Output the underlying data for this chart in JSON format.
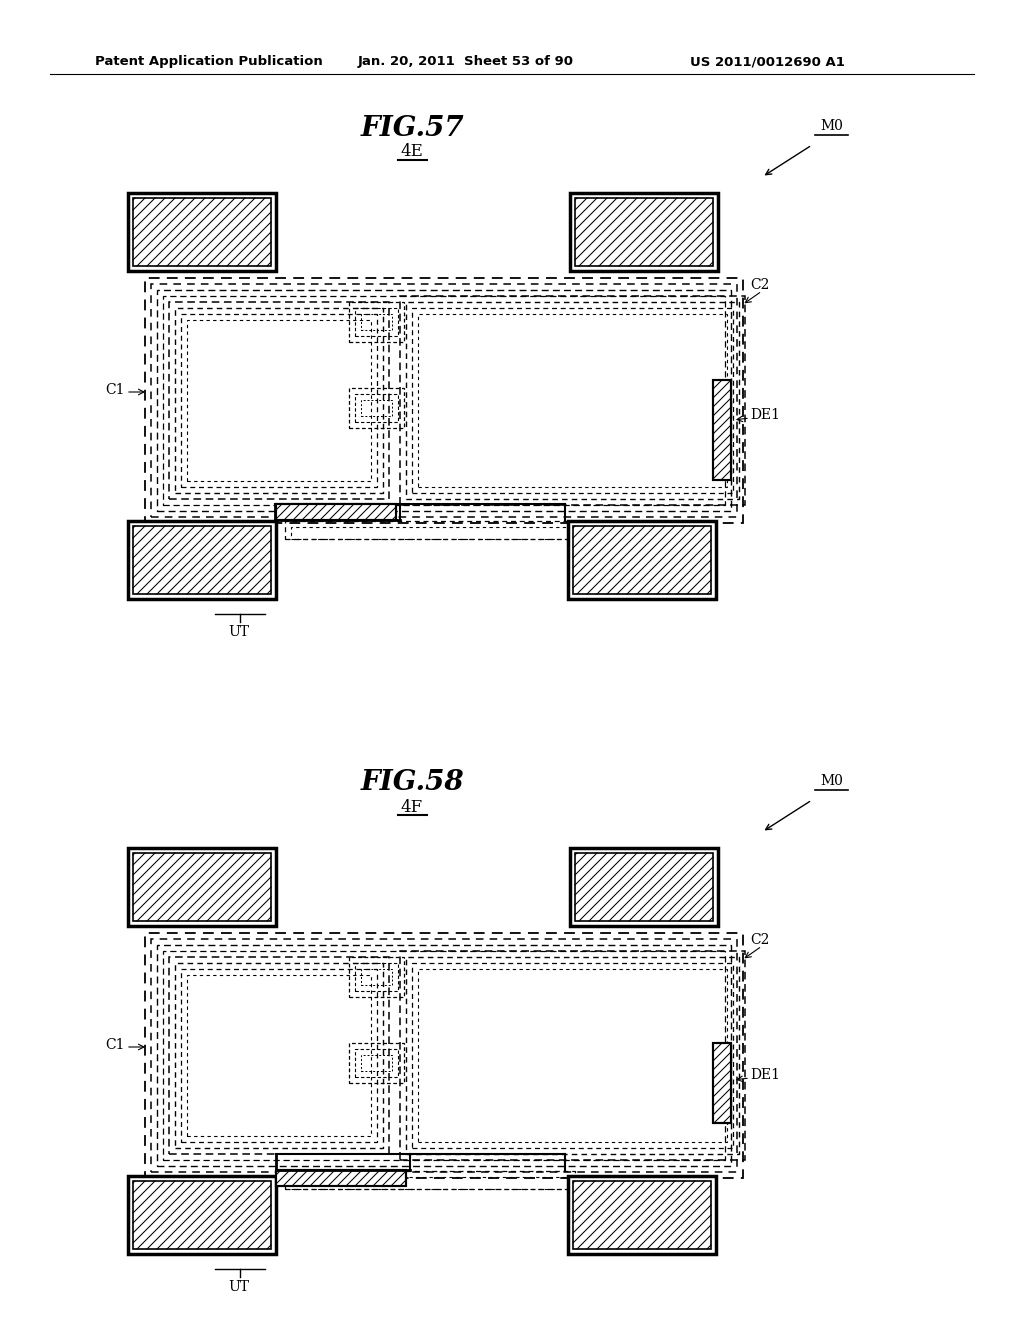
{
  "bg_color": "#ffffff",
  "header_text": "Patent Application Publication",
  "header_date": "Jan. 20, 2011  Sheet 53 of 90",
  "header_patent": "US 2011/0012690 A1",
  "fig57_title": "FIG.57",
  "fig57_sub": "4E",
  "fig58_title": "FIG.58",
  "fig58_sub": "4F",
  "label_M0": "M0",
  "label_C1": "C1",
  "label_C2": "C2",
  "label_DE1": "DE1",
  "label_UT": "UT"
}
